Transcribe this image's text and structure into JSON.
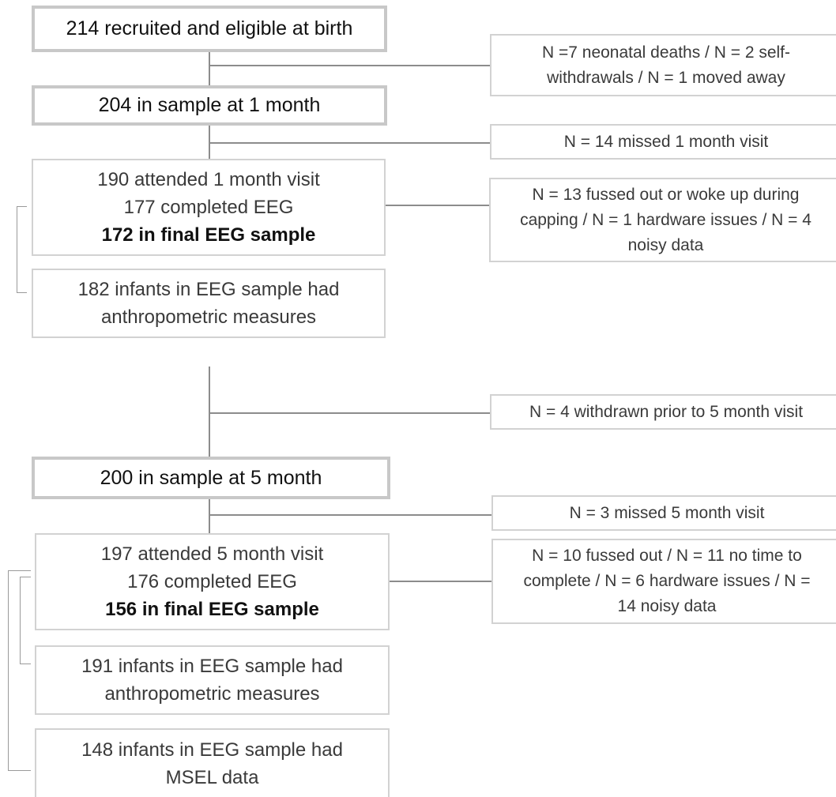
{
  "flowchart": {
    "birth": {
      "text": "214 recruited and eligible at birth"
    },
    "exclusion_birth": {
      "line1": "N =7 neonatal deaths / N = 2 self-",
      "line2": "withdrawals / N = 1 moved away"
    },
    "sample_1m": {
      "text": "204 in sample at 1 month"
    },
    "exclusion_missed_1m": {
      "text": "N = 14 missed 1 month visit"
    },
    "attended_1m": {
      "line1": "190 attended 1 month visit",
      "line2": "177 completed EEG",
      "line3": "172 in final EEG sample"
    },
    "exclusion_eeg_1m": {
      "line1": "N = 13 fussed out or woke up during",
      "line2": "capping / N = 1 hardware issues / N = 4",
      "line3": "noisy data"
    },
    "anthro_1m": {
      "line1": "182 infants in EEG sample had",
      "line2": "anthropometric measures"
    },
    "exclusion_withdrawn_5m": {
      "text": "N = 4 withdrawn prior to 5 month visit"
    },
    "sample_5m": {
      "text": "200 in sample at 5 month"
    },
    "exclusion_missed_5m": {
      "text": "N = 3 missed 5 month visit"
    },
    "attended_5m": {
      "line1": "197 attended 5 month visit",
      "line2": "176 completed EEG",
      "line3": "156 in final EEG sample"
    },
    "exclusion_eeg_5m": {
      "line1": "N = 10 fussed out / N = 11 no time to",
      "line2": "complete / N = 6 hardware issues / N =",
      "line3": "14 noisy data"
    },
    "anthro_5m": {
      "line1": "191 infants in EEG sample had",
      "line2": "anthropometric measures"
    },
    "msel_5m": {
      "line1": "148 infants in EEG sample had",
      "line2": "MSEL data"
    }
  }
}
